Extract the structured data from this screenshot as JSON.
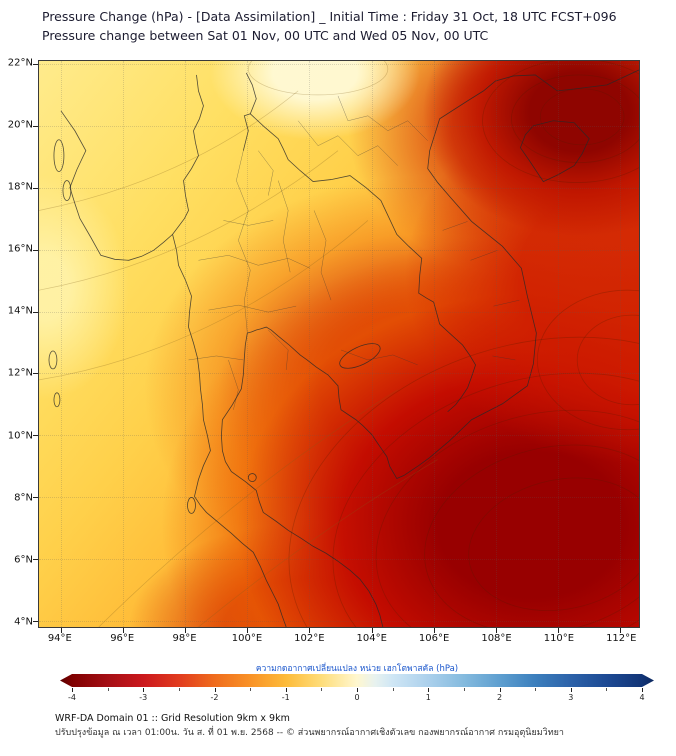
{
  "header": {
    "title_line1": "Pressure Change (hPa) - [Data Assimilation] _ Initial Time : Friday 31 Oct, 18 UTC FCST+096",
    "title_line2": "Pressure change between Sat 01 Nov, 00 UTC and Wed 05 Nov, 00 UTC"
  },
  "chart_data": {
    "type": "heatmap",
    "title": "Pressure Change (hPa) - [Data Assimilation]",
    "subtitle": "Pressure change between Sat 01 Nov, 00 UTC and Wed 05 Nov, 00 UTC",
    "units": "hPa",
    "lon_range": [
      93.3,
      112.6
    ],
    "lat_range": [
      3.8,
      22.1
    ],
    "x_axis": {
      "ticks": [
        {
          "value": 94,
          "label": "94°E"
        },
        {
          "value": 96,
          "label": "96°E"
        },
        {
          "value": 98,
          "label": "98°E"
        },
        {
          "value": 100,
          "label": "100°E"
        },
        {
          "value": 102,
          "label": "102°E"
        },
        {
          "value": 104,
          "label": "104°E"
        },
        {
          "value": 106,
          "label": "106°E"
        },
        {
          "value": 108,
          "label": "108°E"
        },
        {
          "value": 110,
          "label": "110°E"
        },
        {
          "value": 112,
          "label": "112°E"
        }
      ]
    },
    "y_axis": {
      "ticks": [
        {
          "value": 22,
          "label": "22°N"
        },
        {
          "value": 20,
          "label": "20°N"
        },
        {
          "value": 18,
          "label": "18°N"
        },
        {
          "value": 16,
          "label": "16°N"
        },
        {
          "value": 14,
          "label": "14°N"
        },
        {
          "value": 12,
          "label": "12°N"
        },
        {
          "value": 10,
          "label": "10°N"
        },
        {
          "value": 8,
          "label": "8°N"
        },
        {
          "value": 6,
          "label": "6°N"
        },
        {
          "value": 4,
          "label": "4°N"
        }
      ]
    },
    "colorbar": {
      "label": "ความกดอากาศเปลี่ยนแปลง หน่วย เฮกโตพาสคัล (hPa)",
      "range": [
        -4,
        4
      ],
      "minor_step": 0.5,
      "ticks": [
        -4,
        -3,
        -2,
        -1,
        0,
        1,
        2,
        3,
        4
      ],
      "negative_colors": [
        "#7f0000",
        "#cb181d",
        "#ef6c1d",
        "#fdbb3a",
        "#fff7cf"
      ],
      "positive_colors": [
        "#cfe6f5",
        "#84bade",
        "#3c7fbd",
        "#1d4a94",
        "#0c285f"
      ]
    },
    "grid_estimate": {
      "note": "Approximate pressure change (hPa) read from fill colors at 2-degree grid points",
      "lons": [
        94,
        96,
        98,
        100,
        102,
        104,
        106,
        108,
        110,
        112
      ],
      "lats": [
        22,
        20,
        18,
        16,
        14,
        12,
        10,
        8,
        6,
        4
      ],
      "values_hpa": [
        [
          -0.8,
          -0.7,
          -0.9,
          -0.6,
          -0.3,
          -0.5,
          -1.5,
          -3.0,
          -3.2,
          -3.0
        ],
        [
          -0.8,
          -0.8,
          -0.8,
          -0.7,
          -0.6,
          -1.0,
          -1.8,
          -2.8,
          -3.3,
          -2.8
        ],
        [
          -0.5,
          -0.9,
          -0.9,
          -0.9,
          -1.2,
          -1.6,
          -2.5,
          -2.2,
          -2.2,
          -2.5
        ],
        [
          -0.4,
          -0.7,
          -1.0,
          -1.1,
          -1.4,
          -2.0,
          -2.8,
          -2.4,
          -2.2,
          -2.4
        ],
        [
          -0.6,
          -0.9,
          -1.1,
          -1.2,
          -1.6,
          -2.4,
          -3.2,
          -3.0,
          -2.6,
          -2.6
        ],
        [
          -0.8,
          -1.0,
          -1.2,
          -1.4,
          -1.8,
          -2.8,
          -3.5,
          -3.4,
          -3.0,
          -2.8
        ],
        [
          -0.9,
          -1.1,
          -1.3,
          -1.6,
          -2.2,
          -3.0,
          -3.6,
          -3.6,
          -3.2,
          -3.0
        ],
        [
          -1.0,
          -1.2,
          -1.5,
          -2.0,
          -2.6,
          -3.2,
          -3.6,
          -3.8,
          -3.4,
          -3.2
        ],
        [
          -1.0,
          -1.3,
          -1.8,
          -2.4,
          -2.8,
          -3.0,
          -3.4,
          -3.6,
          -3.6,
          -3.4
        ],
        [
          -1.1,
          -1.4,
          -2.0,
          -2.4,
          -2.6,
          -2.8,
          -3.2,
          -3.4,
          -3.6,
          -3.5
        ]
      ],
      "summary": "Pressure falls over the whole domain: weakest falls (-0.5 to -1 hPa, yellow) over Myanmar and northern/western Thailand; strongest falls (-3 to -4 hPa, deep red) over southern Vietnam, Cambodia coast, Gulf of Thailand, the South China Sea and northern Vietnam / Gulf of Tonkin."
    }
  },
  "footer": {
    "line1": "WRF-DA Domain 01 :: Grid Resolution 9km x 9km",
    "line2": "ปรับปรุงข้อมูล ณ เวลา 01:00น. วัน ส. ที่ 01 พ.ย. 2568 -- © ส่วนพยากรณ์อากาศเชิงตัวเลข กองพยากรณ์อากาศ กรมอุตุนิยมวิทยา"
  }
}
